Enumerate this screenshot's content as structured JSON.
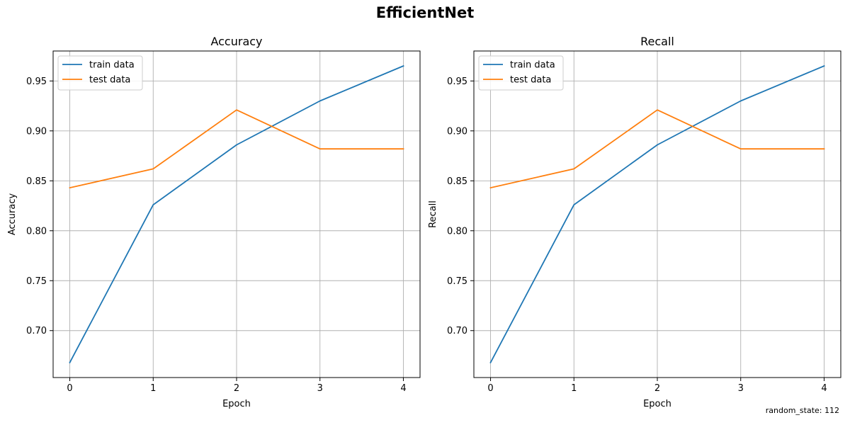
{
  "figure": {
    "title": "EfficientNet",
    "footnote": "random_state: 112"
  },
  "chart_data": [
    {
      "type": "line",
      "title": "Accuracy",
      "xlabel": "Epoch",
      "ylabel": "Accuracy",
      "x": [
        0,
        1,
        2,
        3,
        4
      ],
      "xlim": [
        -0.2,
        4.2
      ],
      "ylim": [
        0.653,
        0.98
      ],
      "xticks": [
        "0",
        "1",
        "2",
        "3",
        "4"
      ],
      "yticks": [
        "0.70",
        "0.75",
        "0.80",
        "0.85",
        "0.90",
        "0.95"
      ],
      "grid": true,
      "legend_position": "top-left",
      "series": [
        {
          "name": "train data",
          "color": "#1f77b4",
          "values": [
            0.668,
            0.826,
            0.886,
            0.93,
            0.965
          ]
        },
        {
          "name": "test data",
          "color": "#ff7f0e",
          "values": [
            0.843,
            0.862,
            0.921,
            0.882,
            0.882
          ]
        }
      ]
    },
    {
      "type": "line",
      "title": "Recall",
      "xlabel": "Epoch",
      "ylabel": "Recall",
      "x": [
        0,
        1,
        2,
        3,
        4
      ],
      "xlim": [
        -0.2,
        4.2
      ],
      "ylim": [
        0.653,
        0.98
      ],
      "xticks": [
        "0",
        "1",
        "2",
        "3",
        "4"
      ],
      "yticks": [
        "0.70",
        "0.75",
        "0.80",
        "0.85",
        "0.90",
        "0.95"
      ],
      "grid": true,
      "legend_position": "top-left",
      "series": [
        {
          "name": "train data",
          "color": "#1f77b4",
          "values": [
            0.668,
            0.826,
            0.886,
            0.93,
            0.965
          ]
        },
        {
          "name": "test data",
          "color": "#ff7f0e",
          "values": [
            0.843,
            0.862,
            0.921,
            0.882,
            0.882
          ]
        }
      ]
    }
  ]
}
